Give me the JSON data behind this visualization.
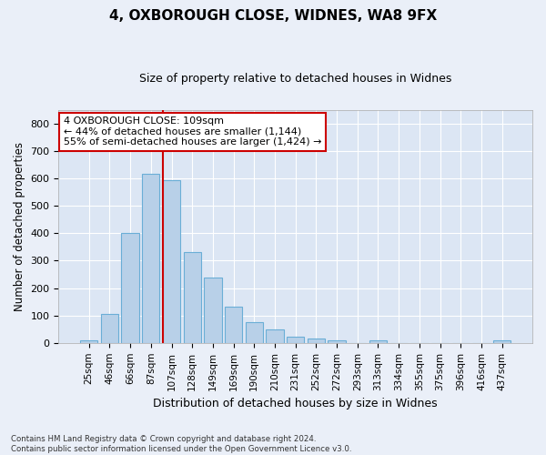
{
  "title1": "4, OXBOROUGH CLOSE, WIDNES, WA8 9FX",
  "title2": "Size of property relative to detached houses in Widnes",
  "xlabel": "Distribution of detached houses by size in Widnes",
  "ylabel": "Number of detached properties",
  "bar_labels": [
    "25sqm",
    "46sqm",
    "66sqm",
    "87sqm",
    "107sqm",
    "128sqm",
    "149sqm",
    "169sqm",
    "190sqm",
    "210sqm",
    "231sqm",
    "252sqm",
    "272sqm",
    "293sqm",
    "313sqm",
    "334sqm",
    "355sqm",
    "375sqm",
    "396sqm",
    "416sqm",
    "437sqm"
  ],
  "bar_values": [
    8,
    107,
    401,
    617,
    592,
    330,
    238,
    133,
    76,
    50,
    22,
    15,
    8,
    0,
    8,
    0,
    0,
    0,
    0,
    0,
    8
  ],
  "bar_color": "#b8d0e8",
  "bar_edge_color": "#6aaed6",
  "vline_color": "#cc0000",
  "annotation_text": "4 OXBOROUGH CLOSE: 109sqm\n← 44% of detached houses are smaller (1,144)\n55% of semi-detached houses are larger (1,424) →",
  "annotation_box_color": "#ffffff",
  "annotation_box_edge": "#cc0000",
  "footnote": "Contains HM Land Registry data © Crown copyright and database right 2024.\nContains public sector information licensed under the Open Government Licence v3.0.",
  "ylim": [
    0,
    850
  ],
  "yticks": [
    0,
    100,
    200,
    300,
    400,
    500,
    600,
    700,
    800
  ],
  "bg_color": "#eaeff8",
  "plot_bg": "#dce6f4",
  "title1_fontsize": 11,
  "title2_fontsize": 9
}
